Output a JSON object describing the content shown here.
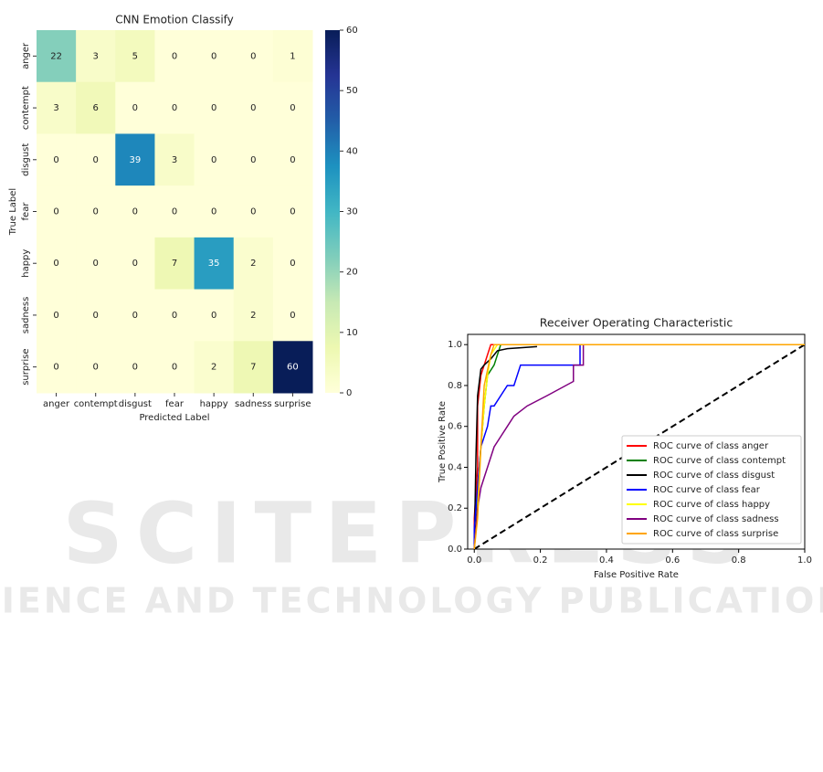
{
  "chart_data": [
    {
      "type": "heatmap",
      "title": "CNN Emotion Classify",
      "x_label": "Predicted Label",
      "y_label": "True Label",
      "x_categories": [
        "anger",
        "contempt",
        "disgust",
        "fear",
        "happy",
        "sadness",
        "surprise"
      ],
      "y_categories": [
        "anger",
        "contempt",
        "disgust",
        "fear",
        "happy",
        "sadness",
        "surprise"
      ],
      "matrix": [
        [
          22,
          3,
          5,
          0,
          0,
          0,
          1
        ],
        [
          3,
          6,
          0,
          0,
          0,
          0,
          0
        ],
        [
          0,
          0,
          39,
          3,
          0,
          0,
          0
        ],
        [
          0,
          0,
          0,
          0,
          0,
          0,
          0
        ],
        [
          0,
          0,
          0,
          7,
          35,
          2,
          0
        ],
        [
          0,
          0,
          0,
          0,
          0,
          2,
          0
        ],
        [
          0,
          0,
          0,
          0,
          2,
          7,
          60
        ]
      ],
      "colormap": "YlGnBu",
      "clim": [
        0,
        60
      ],
      "cticks": [
        0,
        10,
        20,
        30,
        40,
        50,
        60
      ]
    },
    {
      "type": "line",
      "title": "Receiver Operating Characteristic",
      "x_label": "False Positive Rate",
      "y_label": "True Positive Rate",
      "xlim": [
        -0.02,
        1.0
      ],
      "ylim": [
        0,
        1.05
      ],
      "xticks": [
        {
          "value": 0,
          "label": "0.0"
        },
        {
          "value": 0.2,
          "label": "0.2"
        },
        {
          "value": 0.4,
          "label": "0.4"
        },
        {
          "value": 0.6,
          "label": "0.6"
        },
        {
          "value": 0.8,
          "label": "0.8"
        },
        {
          "value": 1,
          "label": "1.0"
        }
      ],
      "yticks": [
        {
          "value": 0,
          "label": "0.0"
        },
        {
          "value": 0.2,
          "label": "0.2"
        },
        {
          "value": 0.4,
          "label": "0.4"
        },
        {
          "value": 0.6,
          "label": "0.6"
        },
        {
          "value": 0.8,
          "label": "0.8"
        },
        {
          "value": 1,
          "label": "1.0"
        }
      ],
      "legend": "lower right",
      "diagonal": true,
      "series": [
        {
          "name": "ROC curve of class anger",
          "color": "#ff0000",
          "x": [
            0,
            0,
            0.01,
            0.01,
            0.02,
            0.03,
            0.04,
            0.05,
            0.06,
            1
          ],
          "values": [
            0,
            0.15,
            0.4,
            0.7,
            0.85,
            0.9,
            0.95,
            1,
            1,
            1
          ]
        },
        {
          "name": "ROC curve of class contempt",
          "color": "#008000",
          "x": [
            0,
            0.01,
            0.02,
            0.03,
            0.04,
            0.06,
            0.08,
            1
          ],
          "values": [
            0,
            0.3,
            0.5,
            0.7,
            0.85,
            0.9,
            1,
            1
          ]
        },
        {
          "name": "ROC curve of class disgust",
          "color": "#000000",
          "x": [
            0,
            0.005,
            0.01,
            0.02,
            0.03,
            0.05,
            0.07,
            0.1,
            0.19
          ],
          "values": [
            0,
            0.45,
            0.75,
            0.88,
            0.9,
            0.93,
            0.97,
            0.98,
            0.99
          ]
        },
        {
          "name": "ROC curve of class fear",
          "color": "#0000ff",
          "x": [
            0,
            0,
            0.01,
            0.02,
            0.04,
            0.05,
            0.06,
            0.08,
            0.1,
            0.12,
            0.14,
            0.2,
            0.32,
            0.32,
            1
          ],
          "values": [
            0,
            0.1,
            0.3,
            0.5,
            0.6,
            0.7,
            0.7,
            0.75,
            0.8,
            0.8,
            0.9,
            0.9,
            0.9,
            1,
            1
          ]
        },
        {
          "name": "ROC curve of class happy",
          "color": "#ffff00",
          "x": [
            0,
            0.01,
            0.02,
            0.03,
            0.04,
            0.05,
            0.07,
            1
          ],
          "values": [
            0,
            0.2,
            0.5,
            0.7,
            0.85,
            0.95,
            1,
            1
          ]
        },
        {
          "name": "ROC curve of class sadness",
          "color": "#800080",
          "x": [
            0,
            0.01,
            0.02,
            0.03,
            0.05,
            0.06,
            0.08,
            0.1,
            0.12,
            0.16,
            0.22,
            0.3,
            0.3,
            0.33,
            0.33,
            1
          ],
          "values": [
            0,
            0.2,
            0.3,
            0.35,
            0.45,
            0.5,
            0.55,
            0.6,
            0.65,
            0.7,
            0.75,
            0.82,
            0.9,
            0.9,
            1,
            1
          ]
        },
        {
          "name": "ROC curve of class surprise",
          "color": "#ffa500",
          "x": [
            0,
            0.01,
            0.02,
            0.03,
            0.05,
            0.06,
            1
          ],
          "values": [
            0,
            0.15,
            0.5,
            0.8,
            0.95,
            1,
            1
          ]
        }
      ]
    }
  ],
  "watermark": [
    "SCITEPRESS",
    "SCIENCE AND TECHNOLOGY PUBLICATIONS"
  ]
}
